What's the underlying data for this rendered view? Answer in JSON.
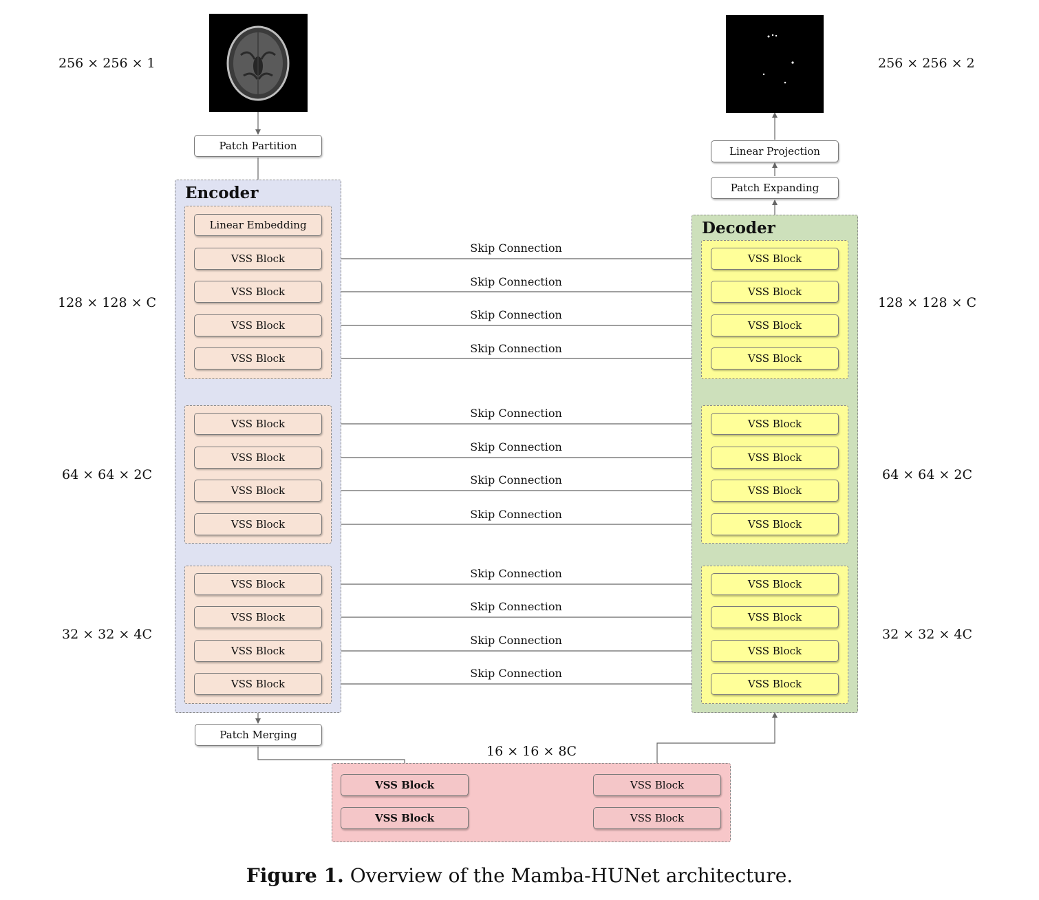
{
  "encoder": {
    "title": "Encoder",
    "input_patch": "Patch Partition",
    "embedding": "Linear Embedding",
    "merging": "Patch Merging",
    "stages": [
      [
        "VSS Block",
        "VSS Block",
        "VSS Block",
        "VSS Block"
      ],
      [
        "VSS Block",
        "VSS Block",
        "VSS Block",
        "VSS Block"
      ],
      [
        "VSS Block",
        "VSS Block",
        "VSS Block",
        "VSS Block"
      ]
    ]
  },
  "decoder": {
    "title": "Decoder",
    "projection": "Linear Projection",
    "expanding": "Patch Expanding",
    "stages": [
      [
        "VSS Block",
        "VSS Block",
        "VSS Block",
        "VSS Block"
      ],
      [
        "VSS Block",
        "VSS Block",
        "VSS Block",
        "VSS Block"
      ],
      [
        "VSS Block",
        "VSS Block",
        "VSS Block",
        "VSS Block"
      ]
    ]
  },
  "bottleneck": {
    "dim": "16 × 16 × 8C",
    "left": [
      "VSS Block",
      "VSS Block"
    ],
    "right": [
      "VSS Block",
      "VSS Block"
    ]
  },
  "skip_label": "Skip Connection",
  "dims_left": [
    "256 × 256 × 1",
    "128 × 128 × C",
    "64 × 64 × 2C",
    "32 × 32 × 4C"
  ],
  "dims_right": [
    "256 × 256 × 2",
    "128 × 128 × C",
    "64 × 64 × 2C",
    "32 × 32 × 4C"
  ],
  "caption": {
    "label": "Figure 1.",
    "text": "Overview of the Mamba-HUNet architecture."
  },
  "colors": {
    "encoder_panel": "#dfe2f2",
    "encoder_block": "#f8e3d6",
    "decoder_panel": "#cde0bb",
    "decoder_block": "#ffff99",
    "bottleneck": "#f7c7c9"
  }
}
